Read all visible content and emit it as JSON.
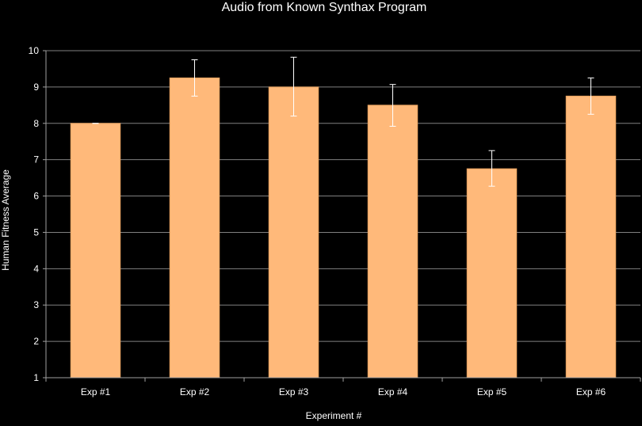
{
  "chart_data": {
    "type": "bar",
    "title": "Audio from Known Synthax Program",
    "xlabel": "Experiment #",
    "ylabel": "Human Fitness Average",
    "categories": [
      "Exp #1",
      "Exp #2",
      "Exp #3",
      "Exp #4",
      "Exp #5",
      "Exp #6"
    ],
    "values": [
      8.0,
      9.25,
      9.0,
      8.5,
      6.75,
      8.75
    ],
    "error_low": [
      8.0,
      8.75,
      8.2,
      7.92,
      6.27,
      8.25
    ],
    "error_high": [
      8.0,
      9.75,
      9.82,
      9.07,
      7.25,
      9.25
    ],
    "ylim": [
      1,
      10
    ],
    "yticks": [
      "1",
      "2",
      "3",
      "4",
      "5",
      "6",
      "7",
      "8",
      "9",
      "10"
    ],
    "grid": true,
    "legend": "none",
    "colors": {
      "background": "#000000",
      "bar_fill": "#ffb97a",
      "bar_stroke": "#e8a25f",
      "gridline": "#808080",
      "axis": "#a0a0a0",
      "text": "#ffffff",
      "error_bar": "#ffffff"
    }
  }
}
